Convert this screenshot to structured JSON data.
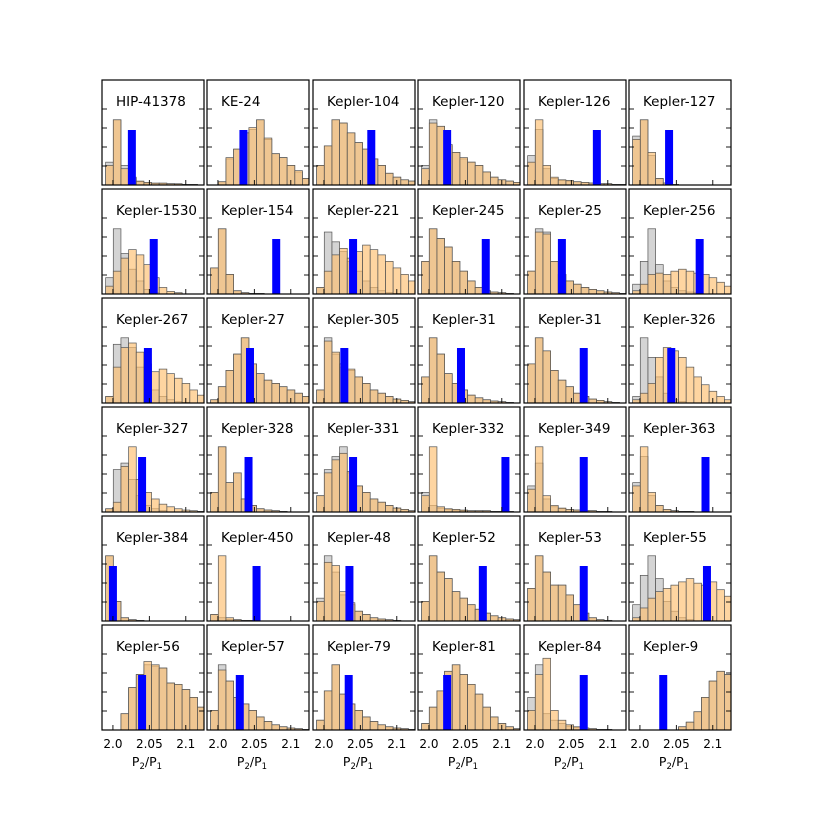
{
  "chart_data": {
    "type": "histogram-grid",
    "xlabel_main": "P",
    "xlabel_num_sub": "2",
    "xlabel_slash": "/P",
    "xlabel_den_sub": "1",
    "xlim": [
      1.985,
      2.125
    ],
    "xticks": [
      2.0,
      2.05,
      2.1
    ],
    "xtick_labels": [
      "2.0",
      "2.05",
      "2.1"
    ],
    "bin_start": 1.99,
    "bin_width": 0.0105,
    "colors": {
      "grey": "#bdbdbd",
      "orange": "#fdbf6f",
      "observed": "#0000ff",
      "frame": "#000000"
    },
    "panels": [
      {
        "name": "HIP-41378",
        "observed": 2.026,
        "grey": [
          0.35,
          1.0,
          0.3,
          0.1,
          0.05,
          0.03,
          0.02,
          0.02,
          0.02,
          0.01,
          0.01,
          0.01,
          0
        ],
        "orange": [
          0.3,
          1.0,
          0.25,
          0.12,
          0.06,
          0.04,
          0.03,
          0.03,
          0.02,
          0.02,
          0.01,
          0.01,
          0
        ]
      },
      {
        "name": "KE-24",
        "observed": 2.035,
        "grey": [
          0,
          0.05,
          0.4,
          0.55,
          0.8,
          0.85,
          1.0,
          0.7,
          0.48,
          0.42,
          0.3,
          0.2,
          0.1
        ],
        "orange": [
          0,
          0.05,
          0.42,
          0.55,
          0.8,
          0.88,
          1.0,
          0.72,
          0.48,
          0.42,
          0.3,
          0.22,
          0.1
        ]
      },
      {
        "name": "Kepler-104",
        "observed": 2.065,
        "grey": [
          0.3,
          0.6,
          1.0,
          0.95,
          0.8,
          0.65,
          0.55,
          0.4,
          0.3,
          0.18,
          0.12,
          0.08,
          0.06
        ],
        "orange": [
          0.3,
          0.6,
          1.0,
          0.95,
          0.8,
          0.65,
          0.55,
          0.4,
          0.3,
          0.18,
          0.12,
          0.08,
          0.06
        ]
      },
      {
        "name": "Kepler-120",
        "observed": 2.025,
        "grey": [
          0.3,
          1.0,
          0.9,
          0.6,
          0.5,
          0.4,
          0.35,
          0.3,
          0.2,
          0.12,
          0.08,
          0.06,
          0.04
        ],
        "orange": [
          0.25,
          0.95,
          0.9,
          0.62,
          0.5,
          0.42,
          0.35,
          0.3,
          0.2,
          0.12,
          0.08,
          0.06,
          0.04
        ]
      },
      {
        "name": "Kepler-126",
        "observed": 2.085,
        "grey": [
          0.45,
          0.85,
          0.25,
          0.1,
          0.07,
          0.06,
          0.05,
          0.04,
          0.03,
          0.02,
          0.02,
          0.01,
          0.01
        ],
        "orange": [
          0.35,
          1.0,
          0.3,
          0.12,
          0.08,
          0.07,
          0.05,
          0.04,
          0.03,
          0.02,
          0.02,
          0.01,
          0.01
        ]
      },
      {
        "name": "Kepler-127",
        "observed": 2.04,
        "grey": [
          0.75,
          1.0,
          0.45,
          0.1,
          0.03,
          0.01,
          0,
          0,
          0,
          0,
          0,
          0,
          0
        ],
        "orange": [
          0.7,
          1.0,
          0.5,
          0.1,
          0.03,
          0.01,
          0,
          0,
          0,
          0,
          0,
          0,
          0
        ]
      },
      {
        "name": "Kepler-1530",
        "observed": 2.056,
        "grey": [
          0.25,
          1.0,
          0.62,
          0.38,
          0.2,
          0.07,
          0.02,
          0,
          0,
          0,
          0,
          0,
          0
        ],
        "orange": [
          0.12,
          0.35,
          0.55,
          0.68,
          0.6,
          0.45,
          0.25,
          0.1,
          0.04,
          0.02,
          0,
          0,
          0
        ]
      },
      {
        "name": "Kepler-154",
        "observed": 2.08,
        "grey": [
          0.4,
          1.0,
          0.3,
          0.05,
          0.02,
          0.01,
          0.01,
          0,
          0,
          0,
          0,
          0,
          0
        ],
        "orange": [
          0.4,
          1.0,
          0.3,
          0.05,
          0.02,
          0.01,
          0.01,
          0,
          0,
          0,
          0,
          0,
          0
        ]
      },
      {
        "name": "Kepler-221",
        "observed": 2.04,
        "grey": [
          0.1,
          0.95,
          0.8,
          0.65,
          0.5,
          0.35,
          0.2,
          0.1,
          0.05,
          0.02,
          0.01,
          0,
          0
        ],
        "orange": [
          0.1,
          0.35,
          0.6,
          0.7,
          0.55,
          0.65,
          0.75,
          0.68,
          0.6,
          0.5,
          0.4,
          0.3,
          0.2
        ]
      },
      {
        "name": "Kepler-245",
        "observed": 2.078,
        "grey": [
          0.5,
          1.0,
          0.85,
          0.72,
          0.5,
          0.35,
          0.2,
          0.1,
          0.05,
          0.03,
          0.02,
          0.01,
          0
        ],
        "orange": [
          0.5,
          1.0,
          0.85,
          0.72,
          0.5,
          0.35,
          0.2,
          0.1,
          0.05,
          0.03,
          0.02,
          0.01,
          0
        ]
      },
      {
        "name": "Kepler-25",
        "observed": 2.037,
        "grey": [
          0.35,
          1.0,
          0.95,
          0.5,
          0.3,
          0.2,
          0.15,
          0.1,
          0.07,
          0.05,
          0.03,
          0.02,
          0.01
        ],
        "orange": [
          0.35,
          0.95,
          0.92,
          0.5,
          0.3,
          0.2,
          0.15,
          0.1,
          0.07,
          0.05,
          0.03,
          0.02,
          0.01
        ]
      },
      {
        "name": "Kepler-256",
        "observed": 2.082,
        "grey": [
          0.15,
          0.5,
          1.0,
          0.45,
          0.2,
          0.1,
          0.05,
          0.03,
          0.02,
          0,
          0,
          0,
          0
        ],
        "orange": [
          0.05,
          0.15,
          0.3,
          0.32,
          0.3,
          0.35,
          0.38,
          0.35,
          0.32,
          0.3,
          0.25,
          0.18,
          0.12
        ]
      }
    ],
    "panels_2": [
      {
        "name": "Kepler-267",
        "observed": 2.048,
        "grey": [
          0.1,
          0.9,
          1.0,
          0.85,
          0.55,
          0.35,
          0.2,
          0.1,
          0.05,
          0.02,
          0.01,
          0,
          0
        ],
        "orange": [
          0.1,
          0.55,
          0.85,
          0.92,
          0.78,
          0.6,
          0.48,
          0.52,
          0.45,
          0.38,
          0.3,
          0.2,
          0.12
        ]
      },
      {
        "name": "Kepler-27",
        "observed": 2.044,
        "grey": [
          0.05,
          0.25,
          0.5,
          0.75,
          1.0,
          0.6,
          0.45,
          0.35,
          0.3,
          0.25,
          0.2,
          0.15,
          0.1
        ],
        "orange": [
          0.05,
          0.25,
          0.5,
          0.75,
          1.0,
          0.6,
          0.45,
          0.35,
          0.3,
          0.25,
          0.2,
          0.15,
          0.1
        ]
      },
      {
        "name": "Kepler-305",
        "observed": 2.028,
        "grey": [
          0.2,
          1.0,
          0.75,
          0.55,
          0.5,
          0.4,
          0.3,
          0.2,
          0.15,
          0.1,
          0.06,
          0.04,
          0.02
        ],
        "orange": [
          0.2,
          0.95,
          0.78,
          0.6,
          0.52,
          0.4,
          0.3,
          0.2,
          0.15,
          0.1,
          0.06,
          0.04,
          0.02
        ]
      },
      {
        "name": "Kepler-31",
        "observed": 2.044,
        "grey": [
          0.4,
          1.0,
          0.75,
          0.45,
          0.3,
          0.2,
          0.12,
          0.08,
          0.05,
          0.03,
          0.02,
          0.01,
          0
        ],
        "orange": [
          0.4,
          1.0,
          0.75,
          0.45,
          0.3,
          0.2,
          0.12,
          0.08,
          0.05,
          0.03,
          0.02,
          0.01,
          0
        ]
      },
      {
        "name": "Kepler-31",
        "observed": 2.067,
        "grey": [
          0.6,
          1.0,
          0.8,
          0.5,
          0.35,
          0.25,
          0.15,
          0.1,
          0.06,
          0.04,
          0.02,
          0.01,
          0
        ],
        "orange": [
          0.6,
          1.0,
          0.8,
          0.5,
          0.35,
          0.25,
          0.15,
          0.1,
          0.06,
          0.04,
          0.02,
          0.01,
          0
        ]
      },
      {
        "name": "Kepler-326",
        "observed": 2.043,
        "grey": [
          0.1,
          1.0,
          0.7,
          0.4,
          0.15,
          0.05,
          0.02,
          0,
          0,
          0,
          0,
          0,
          0
        ],
        "orange": [
          0.05,
          0.15,
          0.3,
          0.7,
          0.85,
          0.8,
          0.7,
          0.55,
          0.4,
          0.28,
          0.18,
          0.1,
          0.05
        ]
      },
      {
        "name": "Kepler-327",
        "observed": 2.04,
        "grey": [
          0.05,
          0.65,
          0.75,
          0.5,
          0.25,
          0.1,
          0.05,
          0.02,
          0,
          0,
          0,
          0,
          0
        ],
        "orange": [
          0.05,
          0.15,
          0.7,
          1.0,
          0.5,
          0.3,
          0.2,
          0.12,
          0.08,
          0.05,
          0.03,
          0.02,
          0.01
        ]
      },
      {
        "name": "Kepler-328",
        "observed": 2.042,
        "grey": [
          0.3,
          1.0,
          0.45,
          0.6,
          0.2,
          0.1,
          0.05,
          0.03,
          0.02,
          0.01,
          0,
          0,
          0
        ],
        "orange": [
          0.3,
          1.0,
          0.45,
          0.6,
          0.2,
          0.1,
          0.05,
          0.03,
          0.02,
          0.01,
          0,
          0,
          0
        ]
      },
      {
        "name": "Kepler-331",
        "observed": 2.04,
        "grey": [
          0.25,
          0.65,
          0.85,
          1.0,
          0.6,
          0.4,
          0.3,
          0.2,
          0.15,
          0.1,
          0.06,
          0.04,
          0.02
        ],
        "orange": [
          0.25,
          0.6,
          0.8,
          0.9,
          0.62,
          0.4,
          0.3,
          0.2,
          0.15,
          0.1,
          0.06,
          0.04,
          0.02
        ]
      },
      {
        "name": "Kepler-332",
        "observed": 2.105,
        "grey": [
          0.3,
          0.1,
          0.06,
          0.04,
          0.03,
          0.02,
          0.02,
          0.02,
          0.02,
          0.01,
          0.01,
          0.01,
          0
        ],
        "orange": [
          0.25,
          1.0,
          0.08,
          0.05,
          0.04,
          0.03,
          0.02,
          0.02,
          0.02,
          0.01,
          0.01,
          0.01,
          0
        ]
      },
      {
        "name": "Kepler-349",
        "observed": 2.067,
        "grey": [
          0.4,
          0.75,
          0.2,
          0.08,
          0.05,
          0.04,
          0.03,
          0.02,
          0.02,
          0.01,
          0.01,
          0,
          0
        ],
        "orange": [
          0.35,
          1.0,
          0.25,
          0.1,
          0.06,
          0.04,
          0.03,
          0.02,
          0.02,
          0.01,
          0.01,
          0,
          0
        ]
      },
      {
        "name": "Kepler-363",
        "observed": 2.09,
        "grey": [
          0.45,
          0.85,
          0.25,
          0.1,
          0.04,
          0.02,
          0.01,
          0.01,
          0,
          0,
          0,
          0,
          0
        ],
        "orange": [
          0.4,
          1.0,
          0.3,
          0.1,
          0.04,
          0.02,
          0.01,
          0.01,
          0,
          0,
          0,
          0,
          0
        ]
      }
    ],
    "panels_3": [
      {
        "name": "Kepler-384",
        "observed": 2.0,
        "grey": [
          1.0,
          0.3,
          0.05,
          0.02,
          0.01,
          0,
          0,
          0,
          0,
          0,
          0,
          0,
          0
        ],
        "orange": [
          1.0,
          0.3,
          0.05,
          0.02,
          0.01,
          0,
          0,
          0,
          0,
          0,
          0,
          0,
          0
        ]
      },
      {
        "name": "Kepler-450",
        "observed": 2.053,
        "grey": [
          0.1,
          0.05,
          0.02,
          0.02,
          0.01,
          0.01,
          0,
          0,
          0,
          0,
          0,
          0,
          0
        ],
        "orange": [
          0.1,
          1.0,
          0.05,
          0.02,
          0.01,
          0.01,
          0,
          0,
          0,
          0,
          0,
          0,
          0
        ]
      },
      {
        "name": "Kepler-48",
        "observed": 2.035,
        "grey": [
          0.35,
          1.0,
          0.75,
          0.4,
          0.25,
          0.15,
          0.1,
          0.05,
          0.03,
          0.02,
          0.01,
          0,
          0
        ],
        "orange": [
          0.3,
          0.9,
          0.85,
          0.45,
          0.28,
          0.15,
          0.1,
          0.05,
          0.03,
          0.02,
          0.01,
          0,
          0
        ]
      },
      {
        "name": "Kepler-52",
        "observed": 2.074,
        "grey": [
          0.3,
          1.0,
          0.75,
          0.65,
          0.45,
          0.35,
          0.25,
          0.18,
          0.12,
          0.08,
          0.05,
          0.03,
          0.02
        ],
        "orange": [
          0.3,
          1.0,
          0.75,
          0.65,
          0.45,
          0.35,
          0.25,
          0.18,
          0.12,
          0.08,
          0.05,
          0.03,
          0.02
        ]
      },
      {
        "name": "Kepler-53",
        "observed": 2.067,
        "grey": [
          0.5,
          1.0,
          0.75,
          0.55,
          0.55,
          0.4,
          0.25,
          0.12,
          0.05,
          0.02,
          0.01,
          0,
          0
        ],
        "orange": [
          0.5,
          1.0,
          0.75,
          0.55,
          0.55,
          0.4,
          0.25,
          0.12,
          0.05,
          0.02,
          0.01,
          0,
          0
        ]
      },
      {
        "name": "Kepler-55",
        "observed": 2.092,
        "grey": [
          0.25,
          0.7,
          1.0,
          0.65,
          0.3,
          0.15,
          0.05,
          0.02,
          0,
          0,
          0,
          0,
          0
        ],
        "orange": [
          0.05,
          0.2,
          0.35,
          0.45,
          0.5,
          0.55,
          0.6,
          0.65,
          0.58,
          0.55,
          0.6,
          0.48,
          0.38
        ]
      },
      {
        "name": "Kepler-56",
        "observed": 2.04,
        "grey": [
          0,
          0,
          0.25,
          0.65,
          0.85,
          1.0,
          0.98,
          0.95,
          0.72,
          0.7,
          0.62,
          0.5,
          0.35
        ],
        "orange": [
          0,
          0,
          0.25,
          0.65,
          0.85,
          1.05,
          1.0,
          0.95,
          0.72,
          0.7,
          0.62,
          0.5,
          0.35
        ]
      },
      {
        "name": "Kepler-57",
        "observed": 2.03,
        "grey": [
          0.3,
          1.0,
          0.75,
          0.5,
          0.4,
          0.3,
          0.2,
          0.13,
          0.08,
          0.05,
          0.03,
          0.02,
          0.01
        ],
        "orange": [
          0.3,
          0.92,
          0.75,
          0.5,
          0.4,
          0.3,
          0.2,
          0.13,
          0.08,
          0.05,
          0.03,
          0.02,
          0.01
        ]
      },
      {
        "name": "Kepler-79",
        "observed": 2.034,
        "grey": [
          0.15,
          0.6,
          1.0,
          0.55,
          0.4,
          0.3,
          0.2,
          0.13,
          0.08,
          0.05,
          0.03,
          0.02,
          0.01
        ],
        "orange": [
          0.15,
          0.6,
          1.0,
          0.55,
          0.4,
          0.3,
          0.2,
          0.13,
          0.08,
          0.05,
          0.03,
          0.02,
          0.01
        ]
      },
      {
        "name": "Kepler-81",
        "observed": 2.025,
        "grey": [
          0.1,
          0.35,
          0.6,
          0.9,
          1.0,
          0.85,
          0.7,
          0.55,
          0.35,
          0.2,
          0.1,
          0.05,
          0.02
        ],
        "orange": [
          0.1,
          0.35,
          0.6,
          0.9,
          1.0,
          0.85,
          0.7,
          0.55,
          0.35,
          0.2,
          0.1,
          0.05,
          0.02
        ]
      },
      {
        "name": "Kepler-84",
        "observed": 2.067,
        "grey": [
          0.5,
          1.0,
          0.25,
          0.15,
          0.1,
          0.06,
          0.04,
          0.03,
          0.02,
          0.01,
          0.01,
          0,
          0
        ],
        "orange": [
          0.3,
          0.85,
          1.1,
          0.3,
          0.15,
          0.08,
          0.05,
          0.03,
          0.02,
          0.01,
          0.01,
          0,
          0
        ]
      },
      {
        "name": "Kepler-9",
        "observed": 2.032,
        "grey": [
          0,
          0,
          0,
          0,
          0,
          0,
          0.05,
          0.12,
          0.28,
          0.5,
          0.75,
          0.9,
          0.85
        ],
        "orange": [
          0,
          0,
          0,
          0,
          0,
          0,
          0.05,
          0.12,
          0.28,
          0.5,
          0.75,
          0.9,
          0.85
        ]
      }
    ]
  }
}
